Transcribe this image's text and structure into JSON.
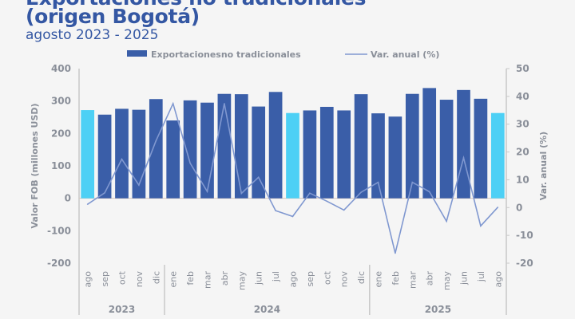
{
  "header": {
    "title_line1": "Exportaciones no tradicionales",
    "title_line2": "(origen Bogotá)",
    "subtitle": "agosto 2023 - 2025"
  },
  "colors": {
    "title": "#3457a3",
    "bar": "#3a5ea8",
    "bar_highlight": "#4dd0f5",
    "line": "#8098d0",
    "axis": "#c8c8c8",
    "text": "#8a8f99",
    "background": "#f5f5f5"
  },
  "chart_data": {
    "type": "bar+line",
    "title": "Exportaciones no tradicionales (origen Bogotá)",
    "subtitle": "agosto 2023 - 2025",
    "categories": [
      "ago",
      "sep",
      "oct",
      "nov",
      "dic",
      "ene",
      "feb",
      "mar",
      "abr",
      "may",
      "jun",
      "jul",
      "ago",
      "sep",
      "oct",
      "nov",
      "dic",
      "ene",
      "feb",
      "mar",
      "abr",
      "may",
      "jun",
      "jul",
      "ago"
    ],
    "highlight_indices": [
      0,
      12,
      24
    ],
    "year_groups": [
      {
        "label": "2023",
        "start": 0,
        "end": 4
      },
      {
        "label": "2024",
        "start": 5,
        "end": 16
      },
      {
        "label": "2025",
        "start": 17,
        "end": 24
      }
    ],
    "series": [
      {
        "name": "Exportacionesno tradicionales",
        "type": "bar",
        "axis": "left",
        "values": [
          272,
          258,
          276,
          273,
          306,
          240,
          302,
          295,
          322,
          321,
          283,
          328,
          263,
          271,
          282,
          271,
          321,
          262,
          252,
          322,
          340,
          304,
          334,
          307,
          263
        ]
      },
      {
        "name": "Var. anual (%)",
        "type": "line",
        "axis": "right",
        "values": [
          1.2,
          5.3,
          17.4,
          8.1,
          24.0,
          37.4,
          16.0,
          5.8,
          37.4,
          5.1,
          10.9,
          -1.1,
          -3.2,
          5.2,
          2.3,
          -0.9,
          5.5,
          9.1,
          -16.4,
          9.1,
          5.7,
          -4.9,
          17.9,
          -6.6,
          0.1
        ]
      }
    ],
    "ylabel": "Valor FOB (millones USD)",
    "ylabel_right": "Var. anual (%)",
    "ylim": [
      -200,
      400
    ],
    "yticks": [
      "400",
      "300",
      "200",
      "100",
      "0",
      "-100",
      "-200"
    ],
    "ylim_right": [
      -20,
      50
    ],
    "yticks_right": [
      "50",
      "40",
      "30",
      "20",
      "10",
      "0",
      "-10",
      "-20"
    ],
    "legend_position": "top",
    "grid": false
  }
}
